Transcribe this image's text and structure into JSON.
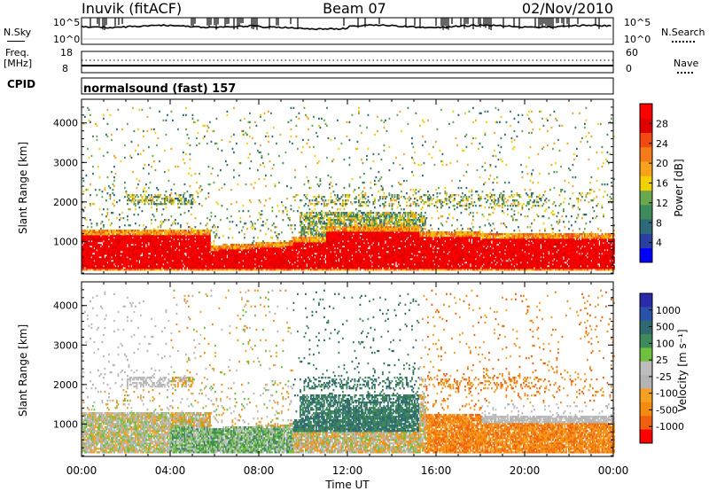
{
  "header": {
    "station": "Inuvik (fitACF)",
    "beam": "Beam 07",
    "date": "02/Nov/2010"
  },
  "noise_panel": {
    "left_label": "N.Sky",
    "right_label": "N.Search",
    "ticks": [
      "10^5",
      "10^0"
    ]
  },
  "freq_panel": {
    "left_label_1": "Freq.",
    "left_label_2": "[MHz]",
    "left_ticks": [
      "18",
      "8"
    ],
    "right_label": "Nave",
    "right_ticks": [
      "60",
      "0"
    ]
  },
  "cpid": {
    "label": "CPID",
    "text": "normalsound (fast) 157"
  },
  "colors": {
    "power": [
      "#0000ff",
      "#2a3f9f",
      "#2f6a78",
      "#3f8a5a",
      "#6aa84f",
      "#f0d000",
      "#f7a21a",
      "#f77a1a",
      "#f04a10",
      "#e00000",
      "#ff0000"
    ],
    "velocity": [
      "#2a2aaa",
      "#2a52a8",
      "#2f6a70",
      "#3f8a5a",
      "#70c040",
      "#bdbdbd",
      "#b4b4b4",
      "#f5a020",
      "#f58a10",
      "#f06010",
      "#ff0000"
    ]
  },
  "chart_data": [
    {
      "type": "heatmap",
      "name": "power",
      "xlabel": "",
      "ylabel": "Slant Range [km]",
      "xlim": [
        0,
        24
      ],
      "ylim": [
        180,
        4600
      ],
      "yticks": [
        1000,
        2000,
        3000,
        4000
      ],
      "colorbar": {
        "label": "Power [dB]",
        "range": [
          0,
          32
        ],
        "ticks": [
          4,
          8,
          12,
          16,
          20,
          24,
          28
        ]
      }
    },
    {
      "type": "heatmap",
      "name": "velocity",
      "xlabel": "Time UT",
      "ylabel": "Slant Range [km]",
      "xlim": [
        0,
        24
      ],
      "ylim": [
        180,
        4600
      ],
      "xticks": [
        "00:00",
        "04:00",
        "08:00",
        "12:00",
        "16:00",
        "20:00",
        "00:00"
      ],
      "yticks": [
        1000,
        2000,
        3000,
        4000
      ],
      "colorbar": {
        "label": "Velocity [m s⁻¹]",
        "ticks": [
          "1000",
          "500",
          "100",
          "25",
          "-25",
          "-100",
          "-500",
          "-1000"
        ]
      }
    }
  ]
}
